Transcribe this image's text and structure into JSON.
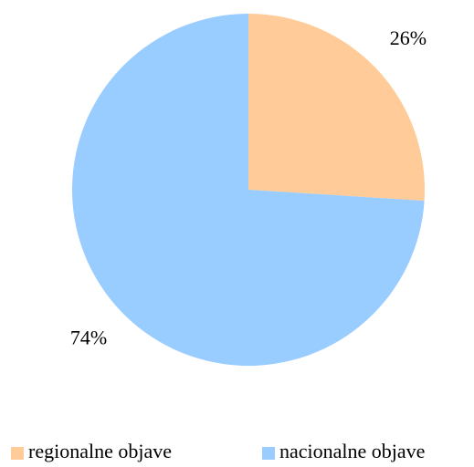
{
  "chart_data": {
    "type": "pie",
    "categories": [
      "regionalne objave",
      "nacionalne objave"
    ],
    "values": [
      26,
      74
    ],
    "value_labels": [
      "26%",
      "74%"
    ],
    "colors": [
      "#FFCC99",
      "#99CCFF"
    ]
  }
}
